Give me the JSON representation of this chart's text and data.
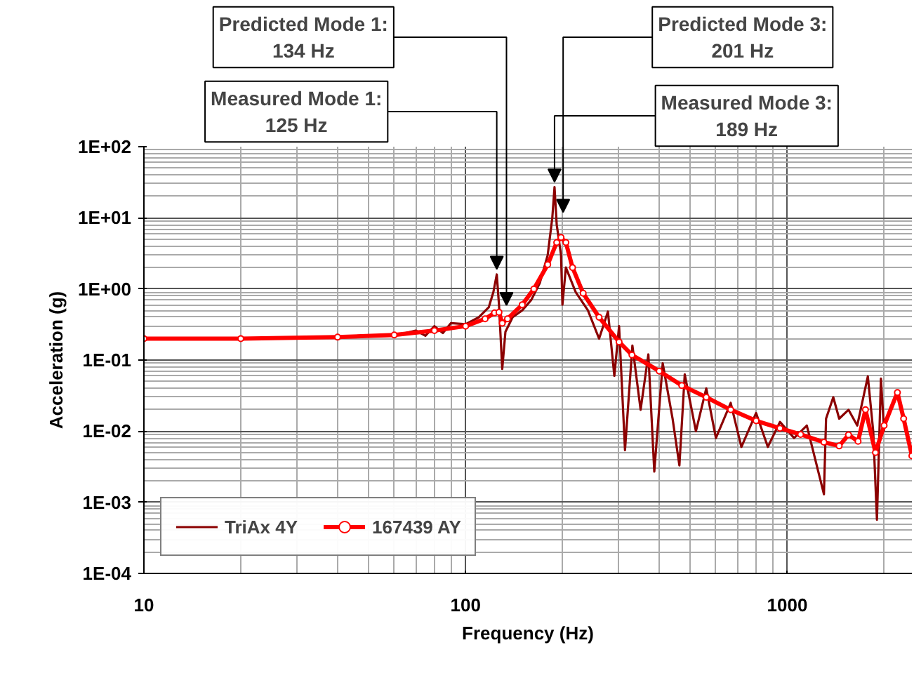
{
  "chart_data": {
    "type": "line",
    "xlabel": "Frequency (Hz)",
    "ylabel": "Acceleration (g)",
    "log": "xy",
    "grid": true,
    "legend": "bottom left",
    "xlim": [
      10,
      2440
    ],
    "xticks": [
      10,
      100,
      1000
    ],
    "ylim": [
      0.0001,
      100
    ],
    "yticks": [
      {
        "value": 0.0001,
        "label": "1E-04"
      },
      {
        "value": 0.001,
        "label": "1E-03"
      },
      {
        "value": 0.01,
        "label": "1E-02"
      },
      {
        "value": 0.1,
        "label": "1E-01"
      },
      {
        "value": 1,
        "label": "1E+00"
      },
      {
        "value": 10,
        "label": "1E+01"
      },
      {
        "value": 100,
        "label": "1E+02"
      }
    ],
    "series": [
      {
        "name": "TriAx 4Y",
        "color": "#8b0000",
        "marker": "none",
        "x": [
          10,
          30,
          60,
          70,
          75,
          80,
          85,
          90,
          100,
          110,
          118,
          122,
          125,
          127,
          130,
          133,
          140,
          150,
          160,
          170,
          180,
          186,
          189,
          192,
          198,
          200,
          205,
          220,
          240,
          260,
          277,
          290,
          300,
          313,
          330,
          350,
          370,
          386,
          410,
          440,
          462,
          480,
          520,
          560,
          600,
          667,
          720,
          800,
          870,
          949,
          1050,
          1150,
          1300,
          1320,
          1390,
          1450,
          1550,
          1650,
          1780,
          1850,
          1900,
          1955,
          2000
        ],
        "values": [
          0.2,
          0.205,
          0.22,
          0.26,
          0.22,
          0.3,
          0.24,
          0.33,
          0.32,
          0.4,
          0.55,
          0.9,
          1.6,
          0.6,
          0.075,
          0.25,
          0.4,
          0.5,
          0.7,
          1.2,
          3.0,
          10,
          27,
          8,
          3,
          0.6,
          2.0,
          0.9,
          0.5,
          0.2,
          0.48,
          0.06,
          0.3,
          0.0054,
          0.16,
          0.02,
          0.12,
          0.0027,
          0.09,
          0.015,
          0.0033,
          0.063,
          0.01,
          0.04,
          0.008,
          0.025,
          0.006,
          0.018,
          0.006,
          0.0135,
          0.008,
          0.012,
          0.0013,
          0.015,
          0.03,
          0.015,
          0.02,
          0.012,
          0.059,
          0.01,
          0.00057,
          0.055,
          0.01
        ]
      },
      {
        "name": "167439 AY",
        "color": "#ff0000",
        "marker": "circle",
        "x": [
          10,
          20,
          40,
          60,
          80,
          100,
          115,
          123,
          127,
          130,
          135,
          150,
          163,
          180,
          192,
          198,
          205,
          215,
          232,
          260,
          300,
          329,
          400,
          470,
          560,
          667,
          800,
          949,
          1100,
          1300,
          1450,
          1550,
          1660,
          1750,
          1880,
          2000,
          2200,
          2300,
          2440
        ],
        "values": [
          0.2,
          0.2,
          0.21,
          0.225,
          0.26,
          0.3,
          0.38,
          0.46,
          0.47,
          0.33,
          0.38,
          0.6,
          1.0,
          2.2,
          4.5,
          5.3,
          4.5,
          2.0,
          0.87,
          0.4,
          0.18,
          0.118,
          0.07,
          0.044,
          0.03,
          0.02,
          0.014,
          0.011,
          0.009,
          0.007,
          0.0062,
          0.0089,
          0.0072,
          0.02,
          0.005,
          0.012,
          0.035,
          0.015,
          0.0045
        ]
      }
    ],
    "annotations": [
      {
        "text": "Predicted Mode 1:\n134 Hz",
        "x": 134,
        "y": 0.59
      },
      {
        "text": "Measured Mode 1:\n125 Hz",
        "x": 125,
        "y": 1.9
      },
      {
        "text": "Predicted Mode 3:\n201 Hz",
        "x": 201,
        "y": 12
      },
      {
        "text": "Measured Mode 3:\n189 Hz",
        "x": 189,
        "y": 32
      }
    ]
  }
}
